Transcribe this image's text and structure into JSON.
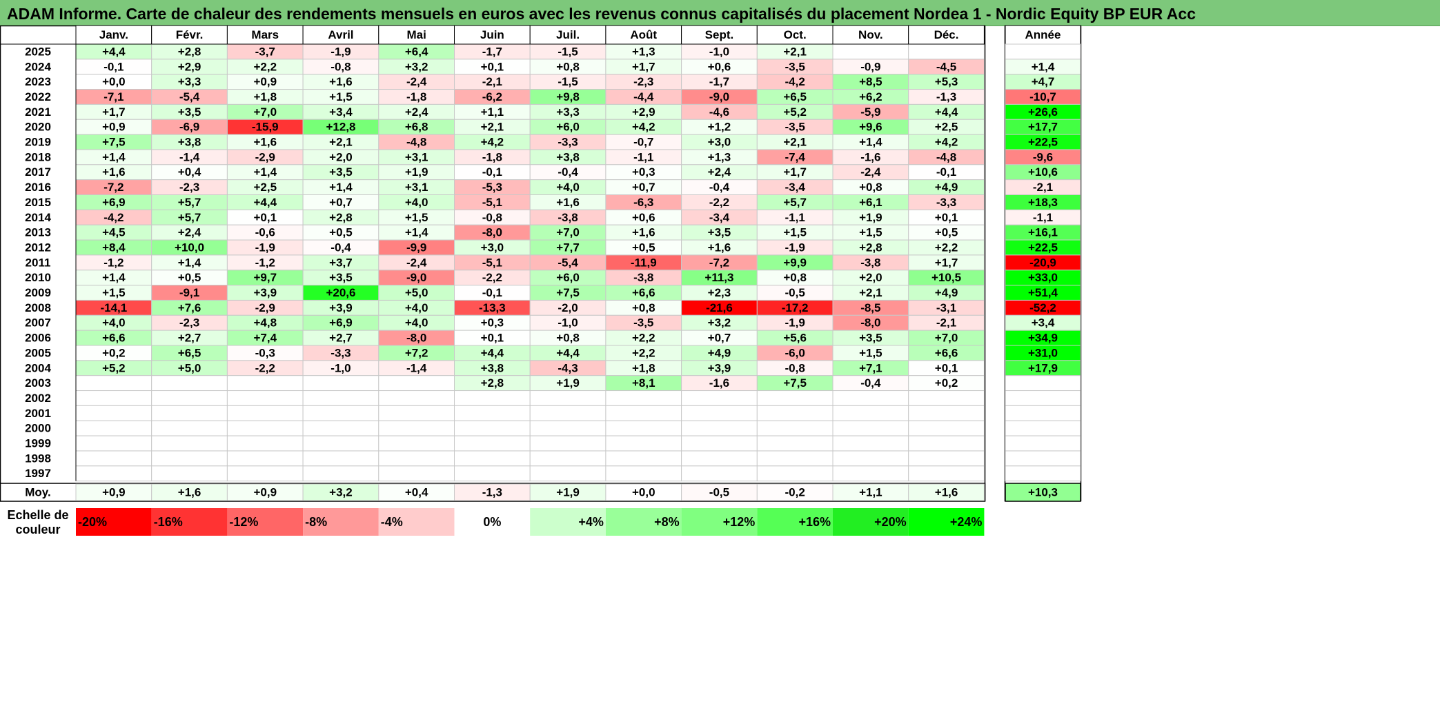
{
  "chart_data": {
    "type": "heatmap",
    "title": "ADAM Informe. Carte de chaleur des rendements mensuels en euros avec les revenus connus capitalisés du placement Nordea 1 - Nordic Equity BP EUR Acc",
    "columns": [
      "Janv.",
      "Févr.",
      "Mars",
      "Avril",
      "Mai",
      "Juin",
      "Juil.",
      "Août",
      "Sept.",
      "Oct.",
      "Nov.",
      "Déc."
    ],
    "year_header": "Année",
    "rows": [
      {
        "year": "2025",
        "months": [
          "+4,4",
          "+2,8",
          "-3,7",
          "-1,9",
          "+6,4",
          "-1,7",
          "-1,5",
          "+1,3",
          "-1,0",
          "+2,1",
          "",
          ""
        ],
        "annual": ""
      },
      {
        "year": "2024",
        "months": [
          "-0,1",
          "+2,9",
          "+2,2",
          "-0,8",
          "+3,2",
          "+0,1",
          "+0,8",
          "+1,7",
          "+0,6",
          "-3,5",
          "-0,9",
          "-4,5"
        ],
        "annual": "+1,4"
      },
      {
        "year": "2023",
        "months": [
          "+0,0",
          "+3,3",
          "+0,9",
          "+1,6",
          "-2,4",
          "-2,1",
          "-1,5",
          "-2,3",
          "-1,7",
          "-4,2",
          "+8,5",
          "+5,3"
        ],
        "annual": "+4,7"
      },
      {
        "year": "2022",
        "months": [
          "-7,1",
          "-5,4",
          "+1,8",
          "+1,5",
          "-1,8",
          "-6,2",
          "+9,8",
          "-4,4",
          "-9,0",
          "+6,5",
          "+6,2",
          "-1,3"
        ],
        "annual": "-10,7"
      },
      {
        "year": "2021",
        "months": [
          "+1,7",
          "+3,5",
          "+7,0",
          "+3,4",
          "+2,4",
          "+1,1",
          "+3,3",
          "+2,9",
          "-4,6",
          "+5,2",
          "-5,9",
          "+4,4"
        ],
        "annual": "+26,6"
      },
      {
        "year": "2020",
        "months": [
          "+0,9",
          "-6,9",
          "-15,9",
          "+12,8",
          "+6,8",
          "+2,1",
          "+6,0",
          "+4,2",
          "+1,2",
          "-3,5",
          "+9,6",
          "+2,5"
        ],
        "annual": "+17,7"
      },
      {
        "year": "2019",
        "months": [
          "+7,5",
          "+3,8",
          "+1,6",
          "+2,1",
          "-4,8",
          "+4,2",
          "-3,3",
          "-0,7",
          "+3,0",
          "+2,1",
          "+1,4",
          "+4,2"
        ],
        "annual": "+22,5"
      },
      {
        "year": "2018",
        "months": [
          "+1,4",
          "-1,4",
          "-2,9",
          "+2,0",
          "+3,1",
          "-1,8",
          "+3,8",
          "-1,1",
          "+1,3",
          "-7,4",
          "-1,6",
          "-4,8"
        ],
        "annual": "-9,6"
      },
      {
        "year": "2017",
        "months": [
          "+1,6",
          "+0,4",
          "+1,4",
          "+3,5",
          "+1,9",
          "-0,1",
          "-0,4",
          "+0,3",
          "+2,4",
          "+1,7",
          "-2,4",
          "-0,1"
        ],
        "annual": "+10,6"
      },
      {
        "year": "2016",
        "months": [
          "-7,2",
          "-2,3",
          "+2,5",
          "+1,4",
          "+3,1",
          "-5,3",
          "+4,0",
          "+0,7",
          "-0,4",
          "-3,4",
          "+0,8",
          "+4,9"
        ],
        "annual": "-2,1"
      },
      {
        "year": "2015",
        "months": [
          "+6,9",
          "+5,7",
          "+4,4",
          "+0,7",
          "+4,0",
          "-5,1",
          "+1,6",
          "-6,3",
          "-2,2",
          "+5,7",
          "+6,1",
          "-3,3"
        ],
        "annual": "+18,3"
      },
      {
        "year": "2014",
        "months": [
          "-4,2",
          "+5,7",
          "+0,1",
          "+2,8",
          "+1,5",
          "-0,8",
          "-3,8",
          "+0,6",
          "-3,4",
          "-1,1",
          "+1,9",
          "+0,1"
        ],
        "annual": "-1,1"
      },
      {
        "year": "2013",
        "months": [
          "+4,5",
          "+2,4",
          "-0,6",
          "+0,5",
          "+1,4",
          "-8,0",
          "+7,0",
          "+1,6",
          "+3,5",
          "+1,5",
          "+1,5",
          "+0,5"
        ],
        "annual": "+16,1"
      },
      {
        "year": "2012",
        "months": [
          "+8,4",
          "+10,0",
          "-1,9",
          "-0,4",
          "-9,9",
          "+3,0",
          "+7,7",
          "+0,5",
          "+1,6",
          "-1,9",
          "+2,8",
          "+2,2"
        ],
        "annual": "+22,5"
      },
      {
        "year": "2011",
        "months": [
          "-1,2",
          "+1,4",
          "-1,2",
          "+3,7",
          "-2,4",
          "-5,1",
          "-5,4",
          "-11,9",
          "-7,2",
          "+9,9",
          "-3,8",
          "+1,7"
        ],
        "annual": "-20,9"
      },
      {
        "year": "2010",
        "months": [
          "+1,4",
          "+0,5",
          "+9,7",
          "+3,5",
          "-9,0",
          "-2,2",
          "+6,0",
          "-3,8",
          "+11,3",
          "+0,8",
          "+2,0",
          "+10,5"
        ],
        "annual": "+33,0"
      },
      {
        "year": "2009",
        "months": [
          "+1,5",
          "-9,1",
          "+3,9",
          "+20,6",
          "+5,0",
          "-0,1",
          "+7,5",
          "+6,6",
          "+2,3",
          "-0,5",
          "+2,1",
          "+4,9"
        ],
        "annual": "+51,4"
      },
      {
        "year": "2008",
        "months": [
          "-14,1",
          "+7,6",
          "-2,9",
          "+3,9",
          "+4,0",
          "-13,3",
          "-2,0",
          "+0,8",
          "-21,6",
          "-17,2",
          "-8,5",
          "-3,1"
        ],
        "annual": "-52,2"
      },
      {
        "year": "2007",
        "months": [
          "+4,0",
          "-2,3",
          "+4,8",
          "+6,9",
          "+4,0",
          "+0,3",
          "-1,0",
          "-3,5",
          "+3,2",
          "-1,9",
          "-8,0",
          "-2,1"
        ],
        "annual": "+3,4"
      },
      {
        "year": "2006",
        "months": [
          "+6,6",
          "+2,7",
          "+7,4",
          "+2,7",
          "-8,0",
          "+0,1",
          "+0,8",
          "+2,2",
          "+0,7",
          "+5,6",
          "+3,5",
          "+7,0"
        ],
        "annual": "+34,9"
      },
      {
        "year": "2005",
        "months": [
          "+0,2",
          "+6,5",
          "-0,3",
          "-3,3",
          "+7,2",
          "+4,4",
          "+4,4",
          "+2,2",
          "+4,9",
          "-6,0",
          "+1,5",
          "+6,6"
        ],
        "annual": "+31,0"
      },
      {
        "year": "2004",
        "months": [
          "+5,2",
          "+5,0",
          "-2,2",
          "-1,0",
          "-1,4",
          "+3,8",
          "-4,3",
          "+1,8",
          "+3,9",
          "-0,8",
          "+7,1",
          "+0,1"
        ],
        "annual": "+17,9"
      },
      {
        "year": "2003",
        "months": [
          "",
          "",
          "",
          "",
          "",
          "+2,8",
          "+1,9",
          "+8,1",
          "-1,6",
          "+7,5",
          "-0,4",
          "+0,2"
        ],
        "annual": ""
      },
      {
        "year": "2002",
        "months": [
          "",
          "",
          "",
          "",
          "",
          "",
          "",
          "",
          "",
          "",
          "",
          ""
        ],
        "annual": ""
      },
      {
        "year": "2001",
        "months": [
          "",
          "",
          "",
          "",
          "",
          "",
          "",
          "",
          "",
          "",
          "",
          ""
        ],
        "annual": ""
      },
      {
        "year": "2000",
        "months": [
          "",
          "",
          "",
          "",
          "",
          "",
          "",
          "",
          "",
          "",
          "",
          ""
        ],
        "annual": ""
      },
      {
        "year": "1999",
        "months": [
          "",
          "",
          "",
          "",
          "",
          "",
          "",
          "",
          "",
          "",
          "",
          ""
        ],
        "annual": ""
      },
      {
        "year": "1998",
        "months": [
          "",
          "",
          "",
          "",
          "",
          "",
          "",
          "",
          "",
          "",
          "",
          ""
        ],
        "annual": ""
      },
      {
        "year": "1997",
        "months": [
          "",
          "",
          "",
          "",
          "",
          "",
          "",
          "",
          "",
          "",
          "",
          ""
        ],
        "annual": ""
      }
    ],
    "average": {
      "label": "Moy.",
      "months": [
        "+0,9",
        "+1,6",
        "+0,9",
        "+3,2",
        "+0,4",
        "-1,3",
        "+1,9",
        "+0,0",
        "-0,5",
        "-0,2",
        "+1,1",
        "+1,6"
      ],
      "annual": "+10,3"
    },
    "scale": {
      "label": "Echelle de couleur",
      "stops": [
        {
          "label": "-20%",
          "value": -20,
          "color": "#ff0000"
        },
        {
          "label": "-16%",
          "value": -16,
          "color": "#ff3333"
        },
        {
          "label": "-12%",
          "value": -12,
          "color": "#ff6666"
        },
        {
          "label": "-8%",
          "value": -8,
          "color": "#ff9999"
        },
        {
          "label": "-4%",
          "value": -4,
          "color": "#ffcccc"
        },
        {
          "label": "0%",
          "value": 0,
          "color": "#ffffff"
        },
        {
          "label": "+4%",
          "value": 4,
          "color": "#ccffcc"
        },
        {
          "label": "+8%",
          "value": 8,
          "color": "#99ff99"
        },
        {
          "label": "+12%",
          "value": 12,
          "color": "#80ff80"
        },
        {
          "label": "+16%",
          "value": 16,
          "color": "#55ff55"
        },
        {
          "label": "+20%",
          "value": 20,
          "color": "#22ee22"
        },
        {
          "label": "+24%",
          "value": 24,
          "color": "#00ff00"
        }
      ]
    },
    "colors": {
      "title_bar": "#7dc87b",
      "negative_max": "#ff0000",
      "positive_max": "#00ff00",
      "neutral": "#ffffff"
    }
  }
}
